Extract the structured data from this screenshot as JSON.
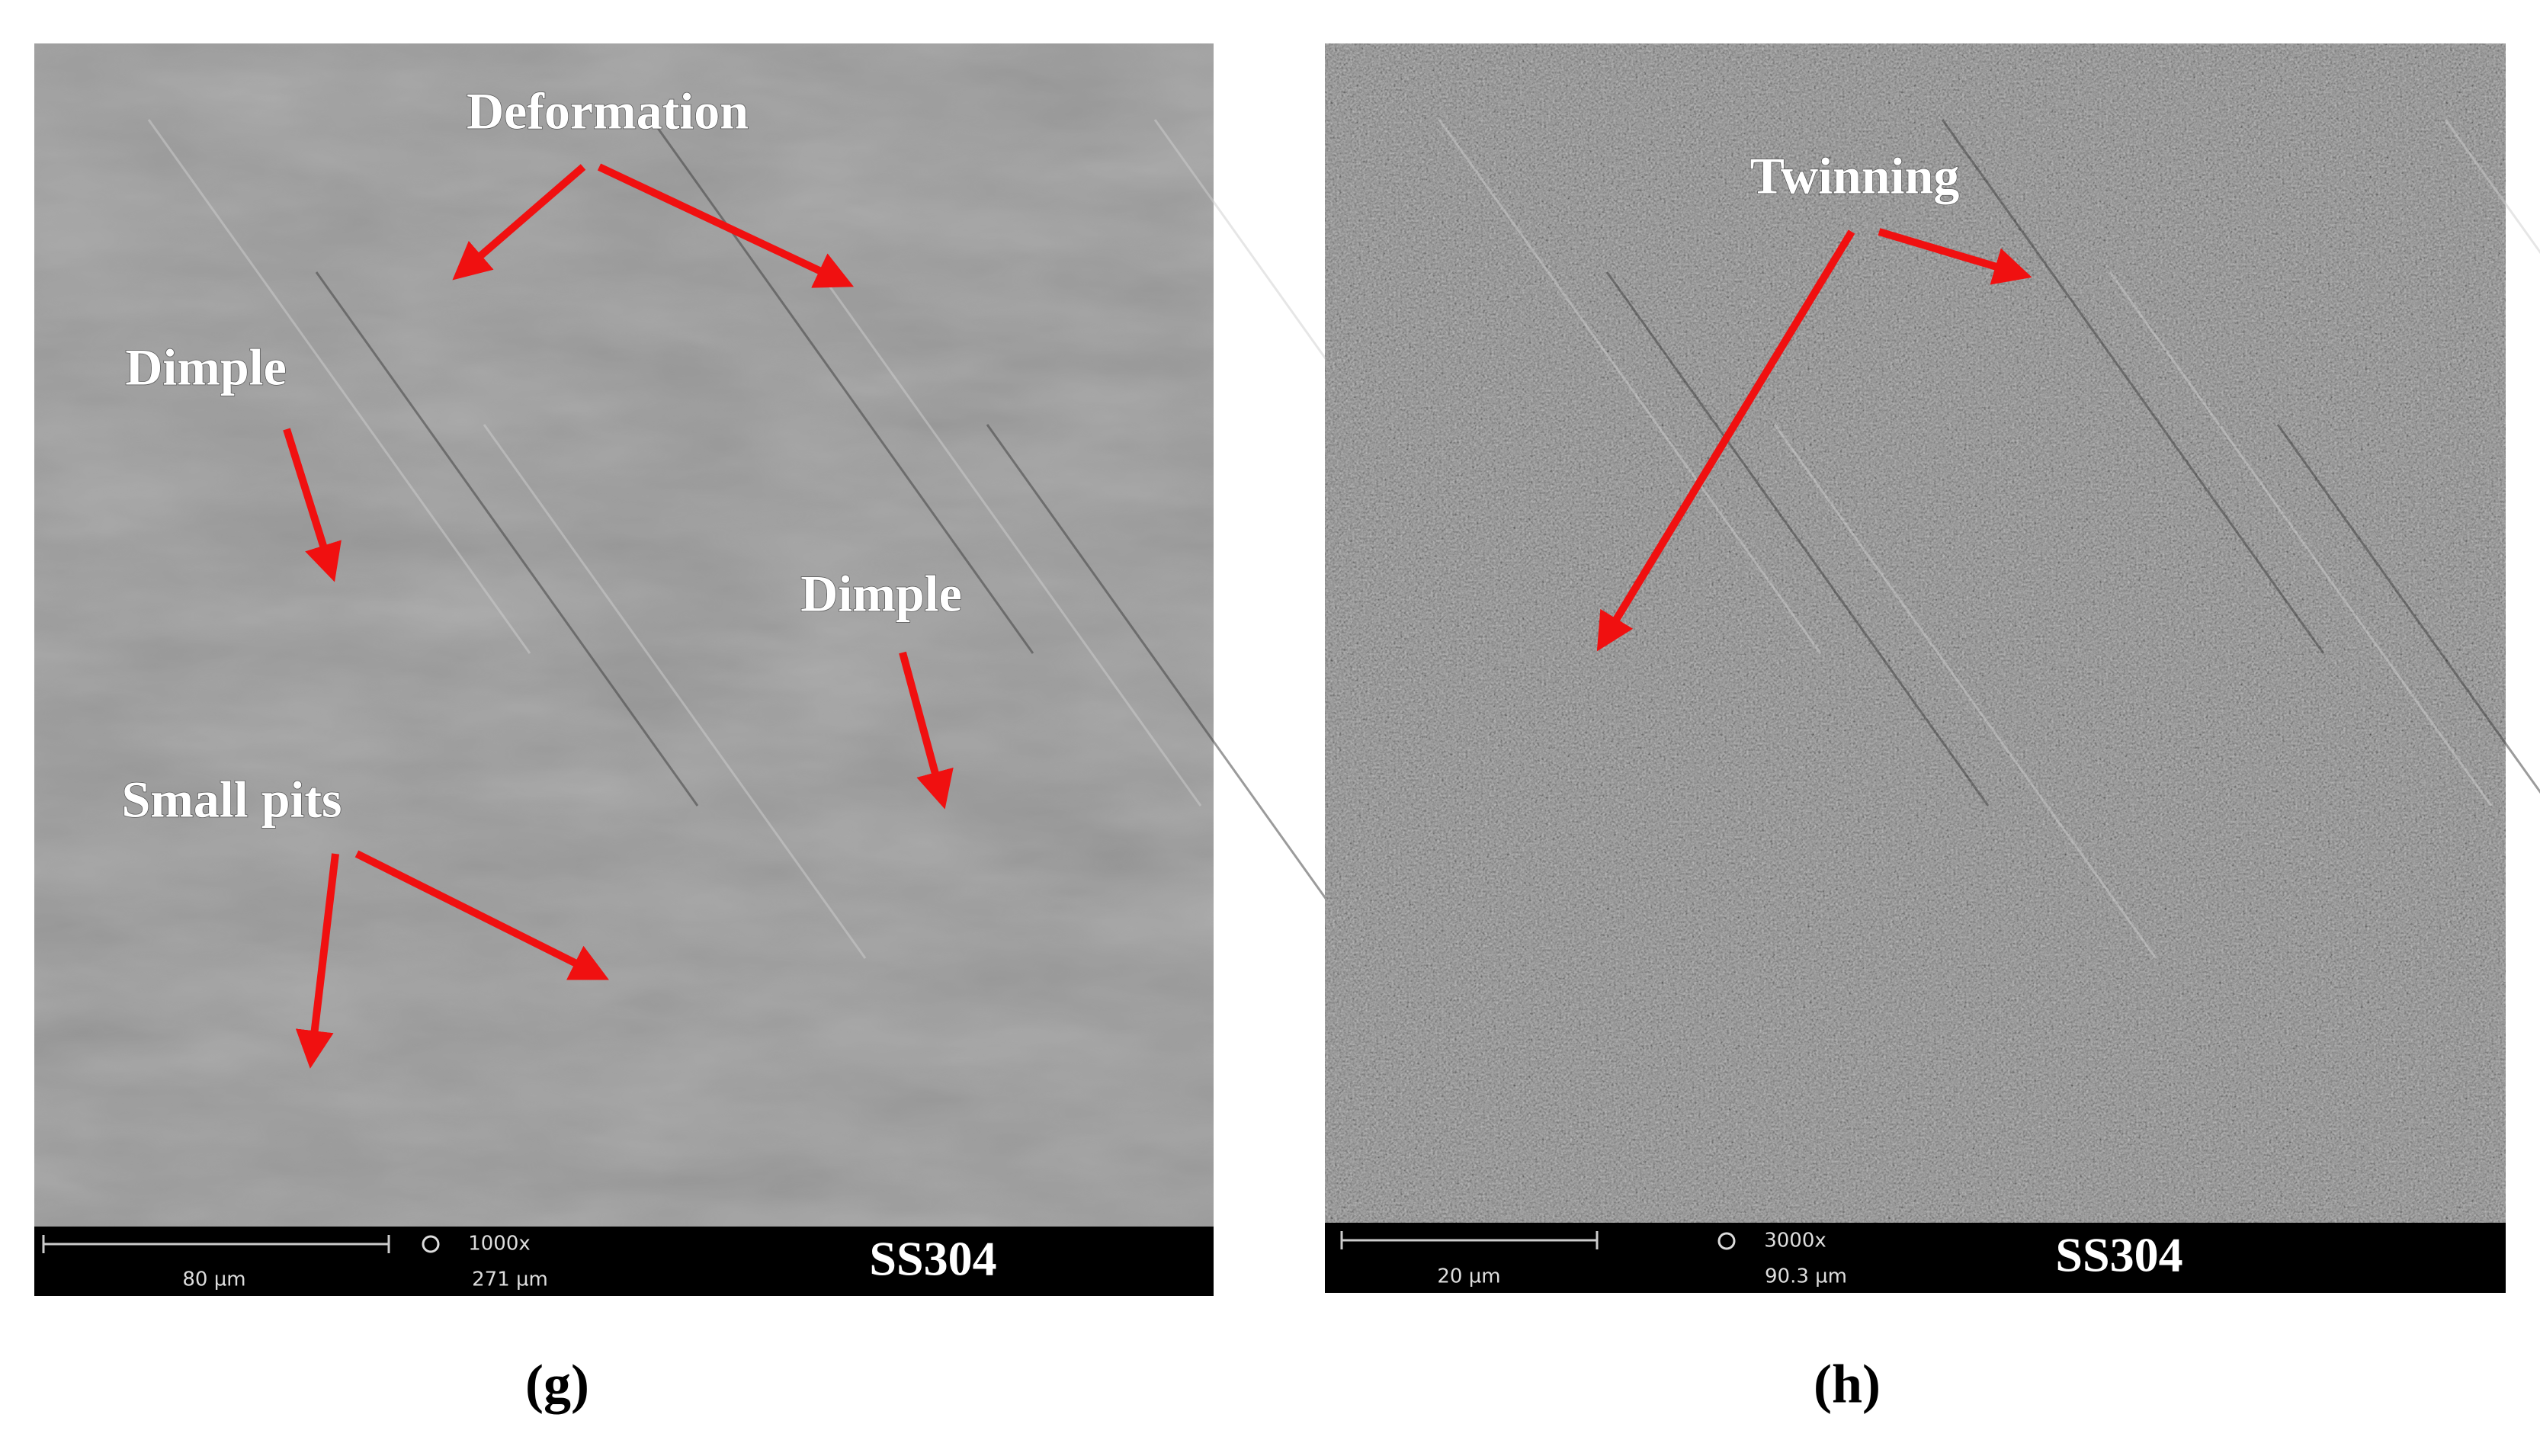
{
  "panels": [
    {
      "label": "(g)",
      "annotations": [
        "Deformation",
        "Dimple",
        "Dimple",
        "Small pits"
      ],
      "scale_bar": {
        "length": "80 µm",
        "magnification": "1000x",
        "field_width": "271 µm",
        "sample": "SS304"
      }
    },
    {
      "label": "(h)",
      "annotations": [
        "Twinning"
      ],
      "scale_bar": {
        "length": "20 µm",
        "magnification": "3000x",
        "field_width": "90.3 µm",
        "sample": "SS304"
      }
    }
  ]
}
